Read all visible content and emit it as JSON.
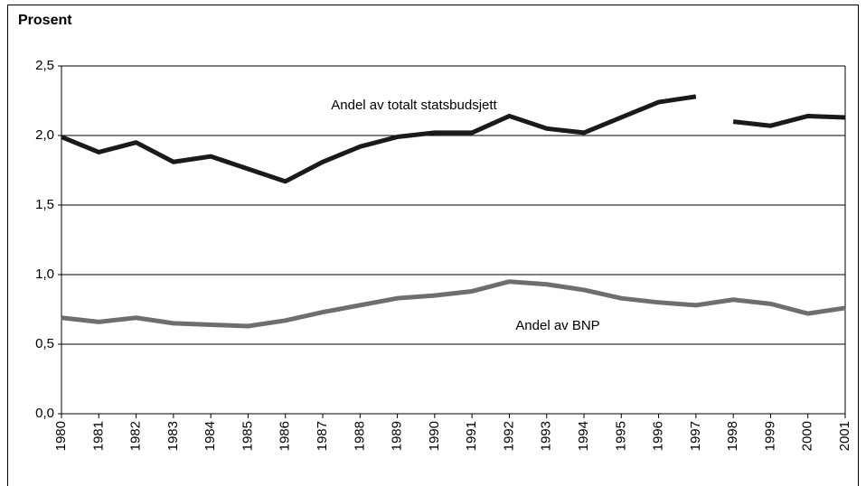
{
  "chart_data": {
    "type": "line",
    "title": "Prosent",
    "categories": [
      "1980",
      "1981",
      "1982",
      "1983",
      "1984",
      "1985",
      "1986",
      "1987",
      "1988",
      "1989",
      "1990",
      "1991",
      "1992",
      "1993",
      "1994",
      "1995",
      "1996",
      "1997",
      "1998",
      "1999",
      "2000",
      "2001"
    ],
    "series": [
      {
        "name": "Andel av totalt statsbudsjett",
        "color": "#1a1a1a",
        "break_after": "1997",
        "values": [
          1.99,
          1.88,
          1.95,
          1.81,
          1.85,
          1.76,
          1.67,
          1.81,
          1.92,
          1.99,
          2.02,
          2.02,
          2.14,
          2.05,
          2.02,
          2.13,
          2.24,
          2.28,
          2.1,
          2.07,
          2.14,
          2.13
        ]
      },
      {
        "name": "Andel av BNP",
        "color": "#6e6e6e",
        "values": [
          0.69,
          0.66,
          0.69,
          0.65,
          0.64,
          0.63,
          0.67,
          0.73,
          0.78,
          0.83,
          0.85,
          0.88,
          0.95,
          0.93,
          0.89,
          0.83,
          0.8,
          0.78,
          0.82,
          0.79,
          0.72,
          0.76
        ]
      }
    ],
    "ylim": [
      0,
      2.5
    ],
    "yticks": [
      {
        "value": 0,
        "label": "0,0"
      },
      {
        "value": 0.5,
        "label": "0,5"
      },
      {
        "value": 1,
        "label": "1,0"
      },
      {
        "value": 1.5,
        "label": "1,5"
      },
      {
        "value": 2,
        "label": "2,0"
      },
      {
        "value": 2.5,
        "label": "2,5"
      }
    ],
    "grid": true
  }
}
